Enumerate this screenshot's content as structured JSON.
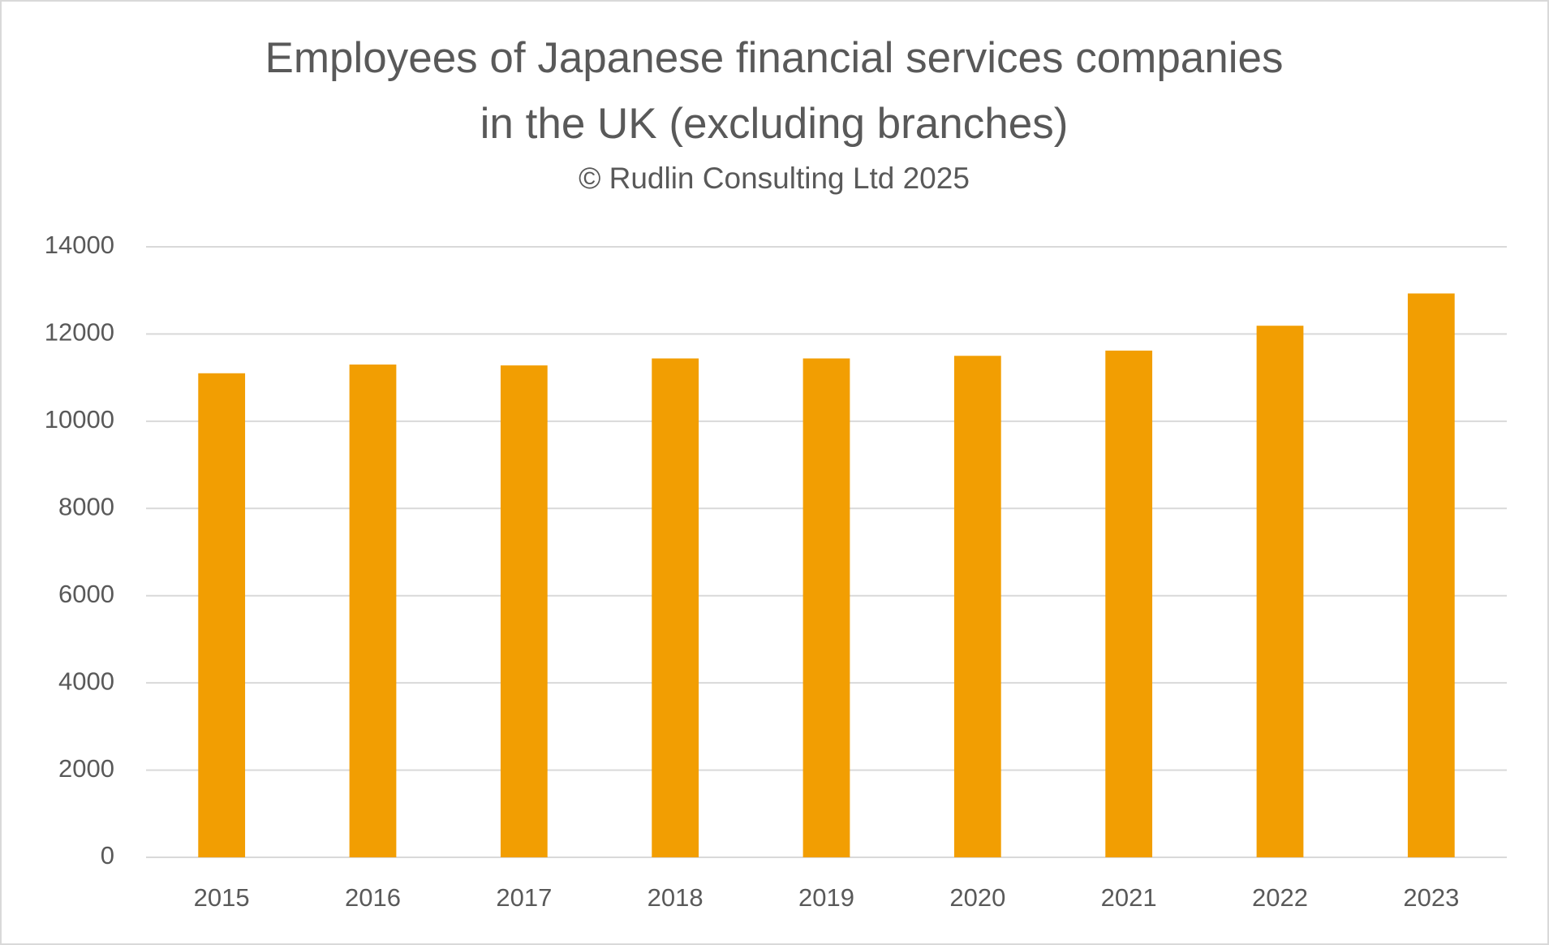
{
  "chart_data": {
    "type": "bar",
    "title": [
      "Employees of Japanese financial services companies",
      "in the UK (excluding branches)"
    ],
    "subtitle": "© Rudlin Consulting Ltd 2025",
    "categories": [
      "2015",
      "2016",
      "2017",
      "2018",
      "2019",
      "2020",
      "2021",
      "2022",
      "2023"
    ],
    "values": [
      11100,
      11300,
      11280,
      11440,
      11440,
      11500,
      11620,
      12190,
      12930
    ],
    "color": "#f29e02",
    "ylim": [
      0,
      14000
    ],
    "yticks": [
      0,
      2000,
      4000,
      6000,
      8000,
      10000,
      12000,
      14000
    ],
    "grid": true
  }
}
